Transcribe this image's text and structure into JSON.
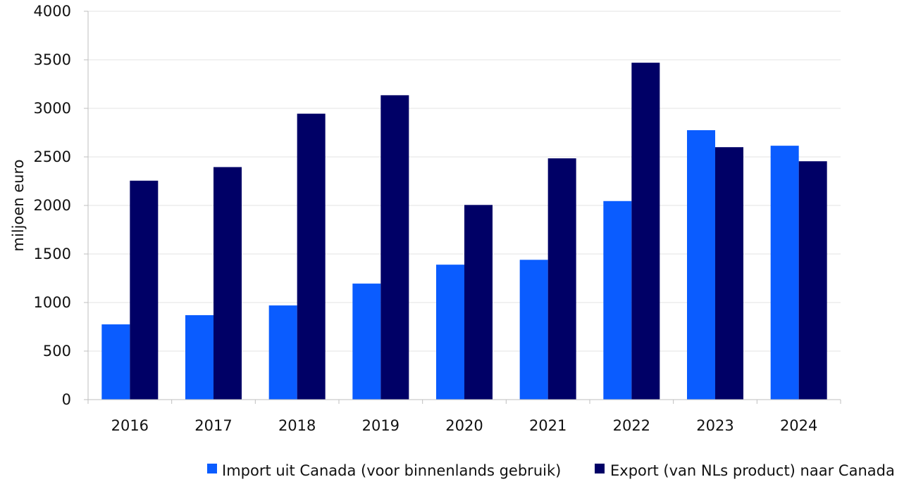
{
  "chart_data": {
    "type": "bar",
    "categories": [
      "2016",
      "2017",
      "2018",
      "2019",
      "2020",
      "2021",
      "2022",
      "2023",
      "2024"
    ],
    "series": [
      {
        "name": "Import uit Canada (voor binnenlands gebruik)",
        "color": "#0a5cff",
        "values": [
          775,
          870,
          970,
          1195,
          1390,
          1440,
          2045,
          2775,
          2615
        ]
      },
      {
        "name": "Export (van NLs product) naar Canada",
        "color": "#000066",
        "values": [
          2255,
          2395,
          2945,
          3135,
          2005,
          2485,
          3470,
          2600,
          2455
        ]
      }
    ],
    "xlabel": "",
    "ylabel": "miljoen euro",
    "ylim": [
      0,
      4000
    ],
    "yticks": [
      0,
      500,
      1000,
      1500,
      2000,
      2500,
      3000,
      3500,
      4000
    ],
    "grid": true,
    "legend_position": "bottom"
  }
}
